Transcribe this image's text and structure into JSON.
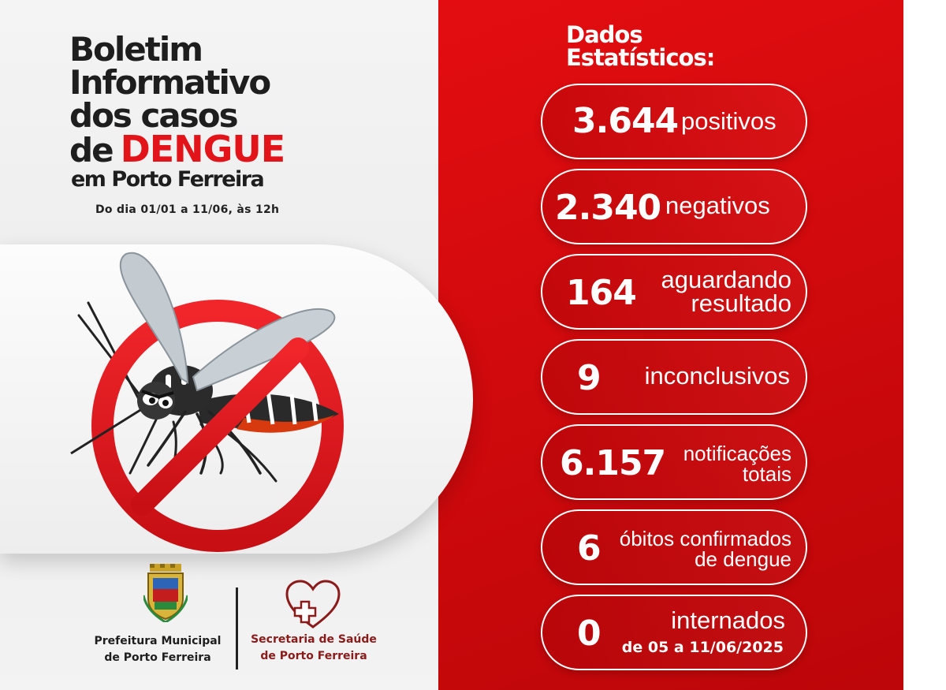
{
  "header": {
    "title_line1": "Boletim",
    "title_line2": "Informativo",
    "title_line3": "dos casos",
    "title_line4_prefix": "de",
    "title_highlight": "DENGUE",
    "subtitle": "em Porto Ferreira",
    "period": "Do dia 01/01 a 11/06, às 12h"
  },
  "illustration": {
    "icon": "no-mosquito-icon"
  },
  "footer": {
    "org1_line1": "Prefeitura Municipal",
    "org1_line2": "de Porto Ferreira",
    "org1_icon": "city-crest-icon",
    "org2_line1": "Secretaria de Saúde",
    "org2_line2": "de Porto Ferreira",
    "org2_icon": "heart-cross-icon"
  },
  "stats": {
    "title_line1": "Dados",
    "title_line2": "Estatísticos:",
    "positivos": {
      "value": "3.644",
      "label": "positivos"
    },
    "negativos": {
      "value": "2.340",
      "label": "negativos"
    },
    "aguardando": {
      "value": "164",
      "label_line1": "aguardando",
      "label_line2": "resultado"
    },
    "inconclusivos": {
      "value": "9",
      "label": "inconclusivos"
    },
    "notificacoes": {
      "value": "6.157",
      "label_line1": "notificações",
      "label_line2": "totais"
    },
    "obitos": {
      "value": "6",
      "label_line1": "óbitos confirmados",
      "label_line2": "de dengue"
    },
    "internados": {
      "value": "0",
      "label": "internados",
      "sub": "de 05 a 11/06/2025"
    }
  },
  "colors": {
    "accent": "#e3131a",
    "panel": "#d10a0d",
    "text_dark": "#1e1e1e",
    "health_red": "#8b1a1a"
  }
}
